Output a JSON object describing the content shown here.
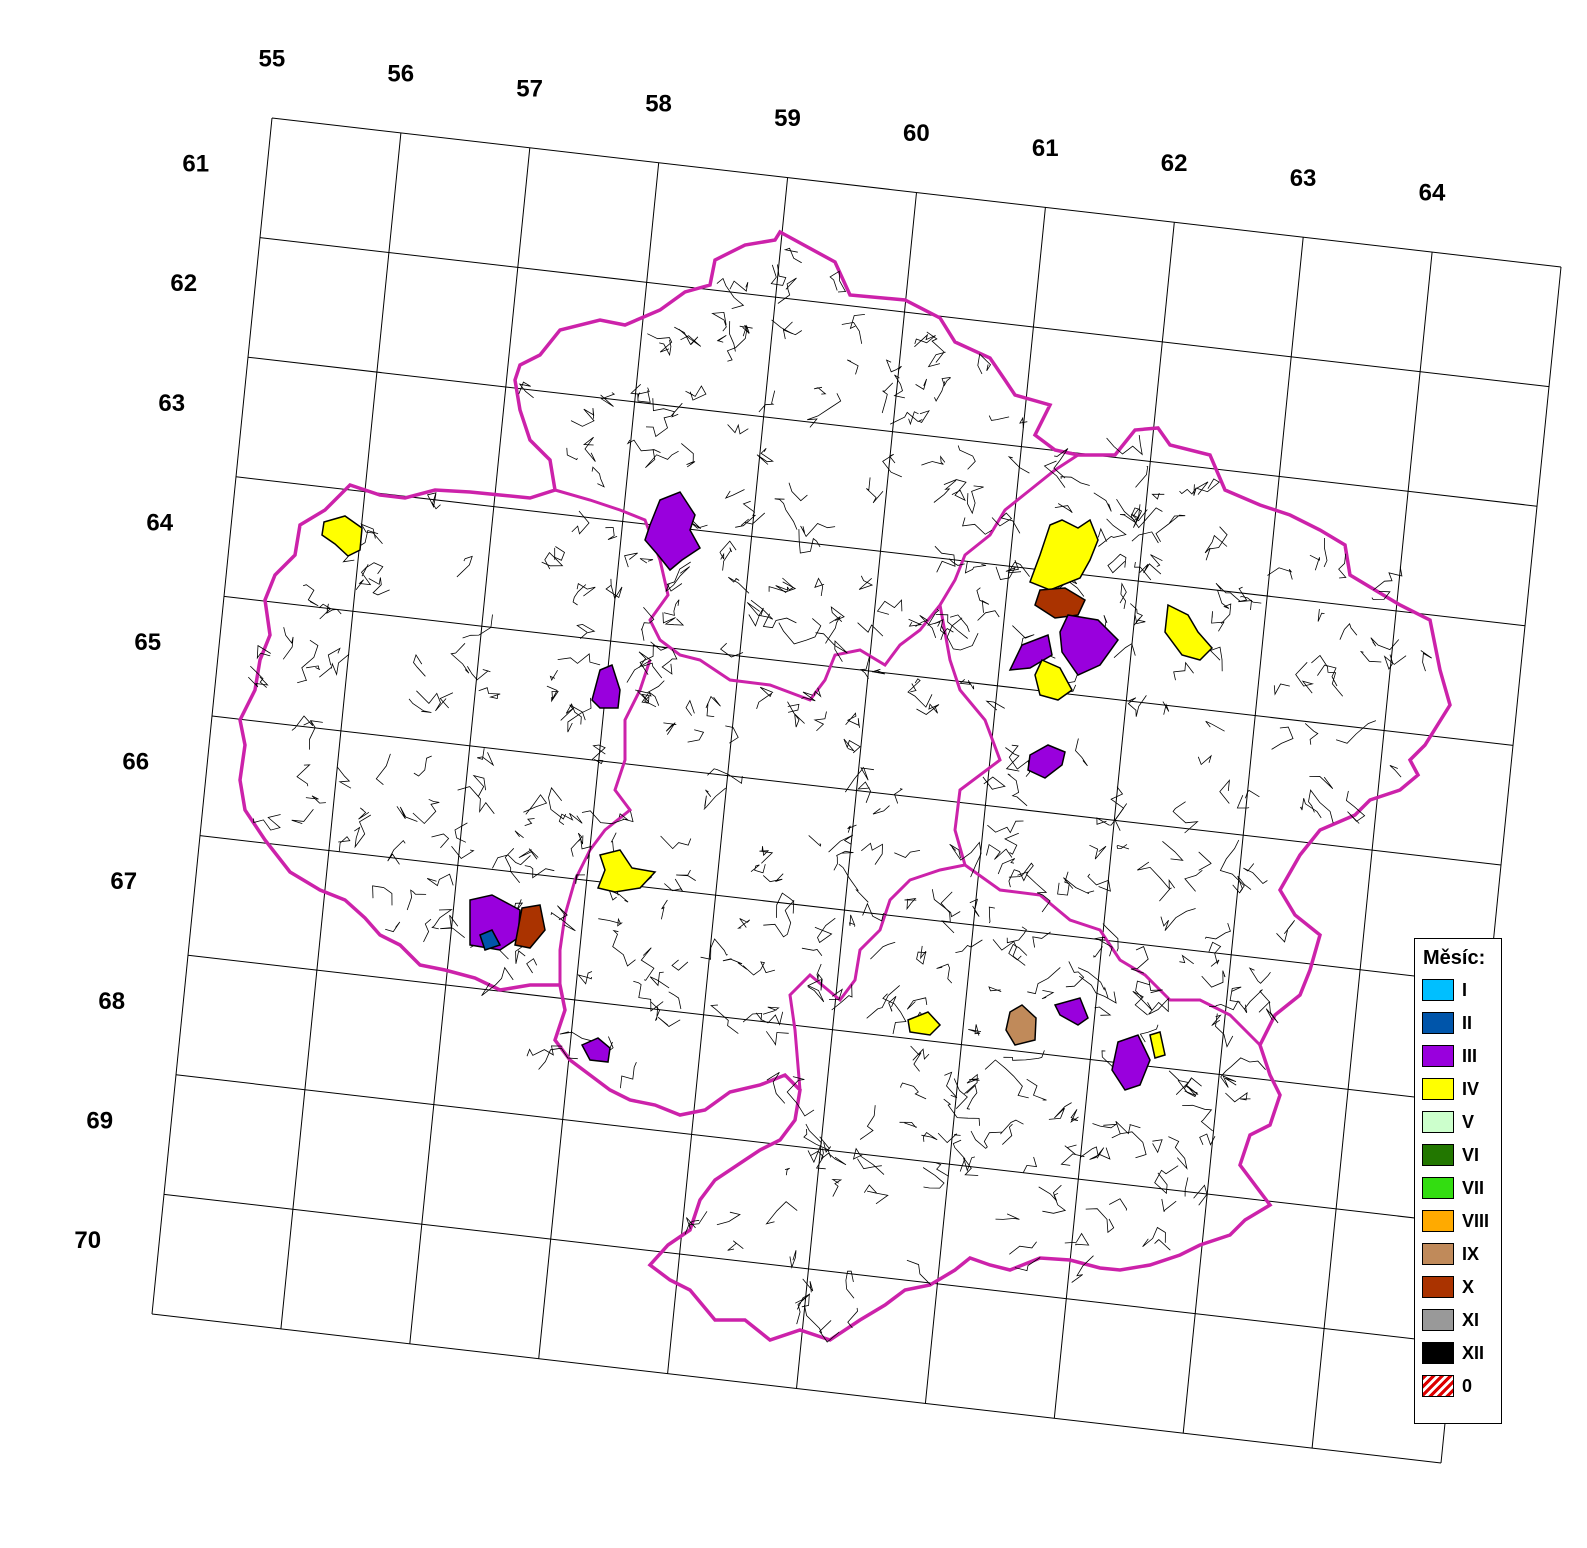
{
  "grid": {
    "columns": [
      "55",
      "56",
      "57",
      "58",
      "59",
      "60",
      "61",
      "62",
      "63",
      "64"
    ],
    "rows": [
      "61",
      "62",
      "63",
      "64",
      "65",
      "66",
      "67",
      "68",
      "69",
      "70"
    ]
  },
  "legend": {
    "title": "Měsíc:",
    "items": [
      {
        "label": "I",
        "color": "#00bfff"
      },
      {
        "label": "II",
        "color": "#0055aa"
      },
      {
        "label": "III",
        "color": "#9900dd"
      },
      {
        "label": "IV",
        "color": "#ffff00"
      },
      {
        "label": "V",
        "color": "#ccffcc"
      },
      {
        "label": "VI",
        "color": "#227700"
      },
      {
        "label": "VII",
        "color": "#33dd11"
      },
      {
        "label": "VIII",
        "color": "#ffaa00"
      },
      {
        "label": "IX",
        "color": "#c08a5a"
      },
      {
        "label": "X",
        "color": "#aa3300"
      },
      {
        "label": "XI",
        "color": "#999999"
      },
      {
        "label": "XII",
        "color": "#000000"
      },
      {
        "label": "0",
        "color": "hatched-red-white"
      }
    ]
  },
  "colors": {
    "region_border": "#cc22aa",
    "municipal_border": "#000000",
    "grid_line": "#000000"
  }
}
